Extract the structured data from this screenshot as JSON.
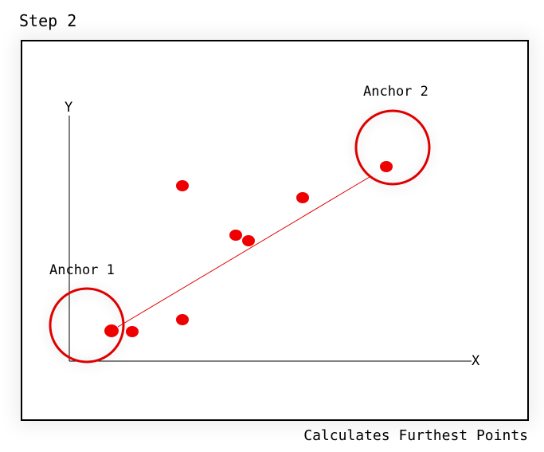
{
  "step_title": "Step 2",
  "caption": "Calculates Furthest Points",
  "axes": {
    "x_label": "X",
    "y_label": "Y"
  },
  "anchors": {
    "anchor1_label": "Anchor 1",
    "anchor2_label": "Anchor 2"
  },
  "colors": {
    "point": "#ee0000",
    "circle": "#dd0000",
    "line": "#e00000",
    "axis": "#000000",
    "frame": "#000000"
  }
}
